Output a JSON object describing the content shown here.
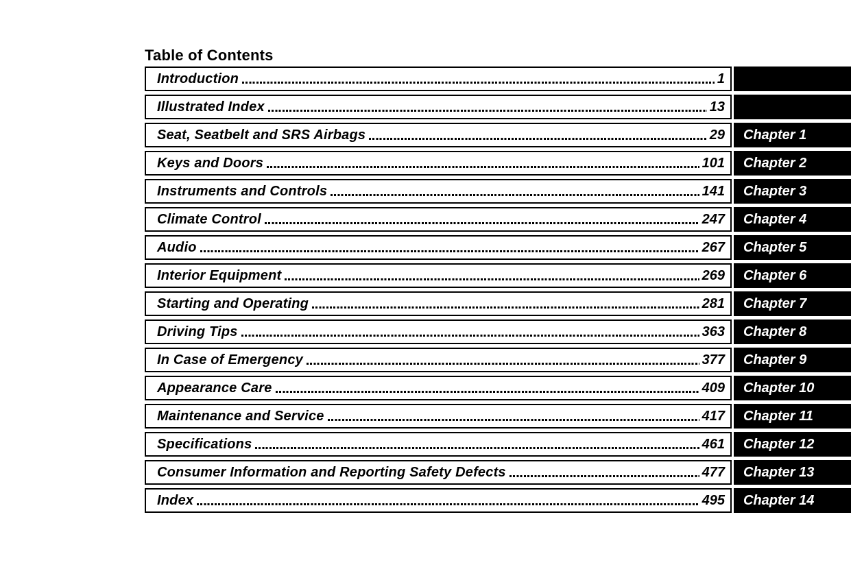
{
  "page": {
    "title": "Table of Contents"
  },
  "colors": {
    "ink": "#000000",
    "paper": "#ffffff",
    "tab_bg": "#000000",
    "tab_text": "#ffffff"
  },
  "toc": {
    "entries": [
      {
        "title": "Introduction",
        "page": "1",
        "chapter": ""
      },
      {
        "title": "Illustrated Index",
        "page": "13",
        "chapter": ""
      },
      {
        "title": "Seat, Seatbelt and SRS Airbags",
        "page": "29",
        "chapter": "Chapter 1"
      },
      {
        "title": "Keys and Doors",
        "page": "101",
        "chapter": "Chapter 2"
      },
      {
        "title": "Instruments and Controls",
        "page": "141",
        "chapter": "Chapter 3"
      },
      {
        "title": "Climate Control",
        "page": "247",
        "chapter": "Chapter 4"
      },
      {
        "title": "Audio",
        "page": "267",
        "chapter": "Chapter 5"
      },
      {
        "title": "Interior Equipment",
        "page": "269",
        "chapter": "Chapter 6"
      },
      {
        "title": "Starting and Operating",
        "page": "281",
        "chapter": "Chapter 7"
      },
      {
        "title": "Driving Tips",
        "page": "363",
        "chapter": "Chapter 8"
      },
      {
        "title": "In Case of Emergency",
        "page": "377",
        "chapter": "Chapter 9"
      },
      {
        "title": "Appearance Care",
        "page": "409",
        "chapter": "Chapter 10"
      },
      {
        "title": "Maintenance and Service",
        "page": "417",
        "chapter": "Chapter 11"
      },
      {
        "title": "Specifications",
        "page": "461",
        "chapter": "Chapter 12"
      },
      {
        "title": "Consumer Information and Reporting Safety Defects",
        "page": "477",
        "chapter": "Chapter 13"
      },
      {
        "title": "Index",
        "page": "495",
        "chapter": "Chapter 14"
      }
    ]
  }
}
